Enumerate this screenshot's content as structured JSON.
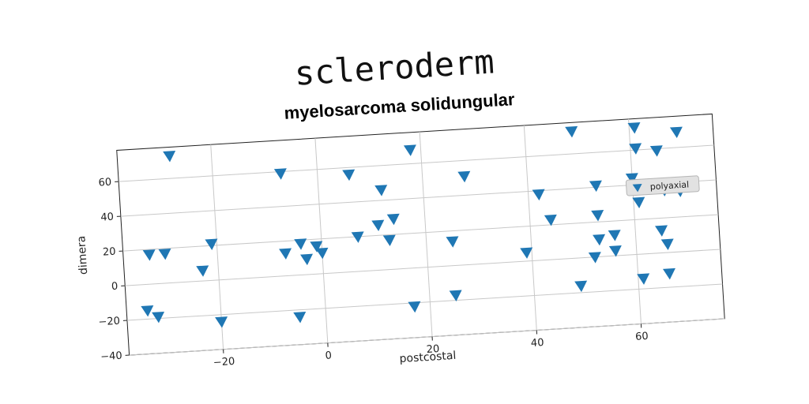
{
  "chart_data": {
    "type": "scatter",
    "title": "scleroderm",
    "subtitle": "myelosarcoma solidungular",
    "xlabel": "postcostal",
    "ylabel": "dimera",
    "xlim": [
      -38,
      76
    ],
    "ylim": [
      -40,
      78
    ],
    "xticks": [
      -20,
      0,
      20,
      40,
      60
    ],
    "yticks": [
      -40,
      -20,
      0,
      20,
      40,
      60
    ],
    "xtick_labels": [
      "−20",
      "0",
      "20",
      "40",
      "60"
    ],
    "ytick_labels": [
      "−40",
      "−20",
      "0",
      "20",
      "40",
      "60"
    ],
    "grid": true,
    "legend_position": "right",
    "series": [
      {
        "name": "polyaxial",
        "marker": "triangle-down",
        "color": "#1f77b4",
        "points": [
          [
            -28,
            73
          ],
          [
            -34,
            -15
          ],
          [
            -33,
            17
          ],
          [
            -32,
            -19
          ],
          [
            -30,
            17
          ],
          [
            -23,
            6
          ],
          [
            -21,
            21
          ],
          [
            -20,
            -24
          ],
          [
            -7,
            59
          ],
          [
            -7,
            13
          ],
          [
            -5,
            -24
          ],
          [
            -4,
            18
          ],
          [
            -3,
            9
          ],
          [
            -1,
            16
          ],
          [
            0,
            12
          ],
          [
            6,
            56
          ],
          [
            7,
            20
          ],
          [
            11,
            26
          ],
          [
            12,
            46
          ],
          [
            13,
            17
          ],
          [
            14,
            29
          ],
          [
            17,
            -22
          ],
          [
            18,
            68
          ],
          [
            25,
            14
          ],
          [
            25,
            -17
          ],
          [
            28,
            51
          ],
          [
            39,
            5
          ],
          [
            42,
            38
          ],
          [
            44,
            23
          ],
          [
            49,
            73
          ],
          [
            49,
            -16
          ],
          [
            52,
            0
          ],
          [
            53,
            24
          ],
          [
            53,
            10
          ],
          [
            53,
            41
          ],
          [
            56,
            12
          ],
          [
            56,
            3
          ],
          [
            60,
            44
          ],
          [
            61,
            73
          ],
          [
            61,
            61
          ],
          [
            61,
            30
          ],
          [
            61,
            -14
          ],
          [
            65,
            59
          ],
          [
            65,
            13
          ],
          [
            66,
            5
          ],
          [
            66,
            -12
          ],
          [
            66,
            36
          ],
          [
            69,
            69
          ],
          [
            69,
            35
          ]
        ]
      }
    ]
  }
}
